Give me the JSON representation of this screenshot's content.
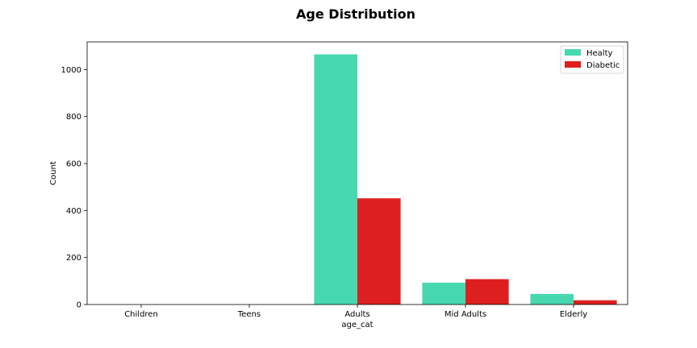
{
  "chart_data": {
    "type": "bar",
    "title": "Age Distribution",
    "xlabel": "age_cat",
    "ylabel": "Count",
    "categories": [
      "Children",
      "Teens",
      "Adults",
      "Mid Adults",
      "Elderly"
    ],
    "series": [
      {
        "name": "Healty",
        "color": "#48d8b0",
        "values": [
          0,
          0,
          1065,
          93,
          45
        ]
      },
      {
        "name": "Diabetic",
        "color": "#dd1f1f",
        "values": [
          0,
          0,
          452,
          108,
          18
        ]
      }
    ],
    "yticks": [
      0,
      200,
      400,
      600,
      800,
      1000
    ],
    "ylim": [
      0,
      1118
    ],
    "grid": false,
    "legend_position": "top-right"
  }
}
